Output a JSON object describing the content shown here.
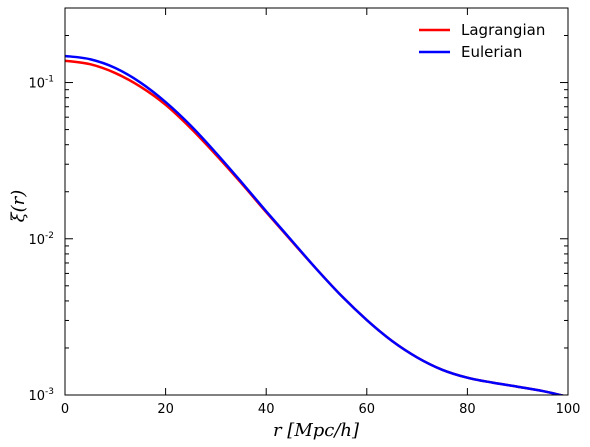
{
  "chart_data": {
    "type": "line",
    "title": "",
    "xlabel": "r [Mpc/h]",
    "ylabel": "ξ(r)",
    "xlim": [
      0,
      100
    ],
    "ylim": [
      0.001,
      0.3
    ],
    "yscale": "log",
    "grid": false,
    "legend_position": "top-right",
    "x_ticks": [
      0,
      20,
      40,
      60,
      80,
      100
    ],
    "y_ticks": [
      {
        "value": 0.001,
        "base": "10",
        "exp": "-3"
      },
      {
        "value": 0.01,
        "base": "10",
        "exp": "-2"
      },
      {
        "value": 0.1,
        "base": "10",
        "exp": "-1"
      }
    ],
    "series": [
      {
        "name": "Lagrangian",
        "color": "#ff0000",
        "x": [
          0,
          5,
          10,
          15,
          20,
          25,
          30,
          35,
          40,
          45,
          50,
          55,
          60,
          65,
          70,
          75,
          80,
          85,
          90,
          95,
          100
        ],
        "y": [
          0.138,
          0.131,
          0.115,
          0.094,
          0.072,
          0.051,
          0.0345,
          0.0228,
          0.0148,
          0.0097,
          0.0064,
          0.0043,
          0.00302,
          0.00222,
          0.00174,
          0.00145,
          0.00129,
          0.0012,
          0.00113,
          0.00106,
          0.000975
        ]
      },
      {
        "name": "Eulerian",
        "color": "#0000ff",
        "x": [
          0,
          5,
          10,
          15,
          20,
          25,
          30,
          35,
          40,
          45,
          50,
          55,
          60,
          65,
          70,
          75,
          80,
          85,
          90,
          95,
          100
        ],
        "y": [
          0.148,
          0.141,
          0.124,
          0.1,
          0.075,
          0.053,
          0.0355,
          0.0232,
          0.015,
          0.0098,
          0.0064,
          0.0043,
          0.00302,
          0.00222,
          0.00174,
          0.00145,
          0.00129,
          0.0012,
          0.00113,
          0.00106,
          0.000975
        ]
      }
    ]
  }
}
